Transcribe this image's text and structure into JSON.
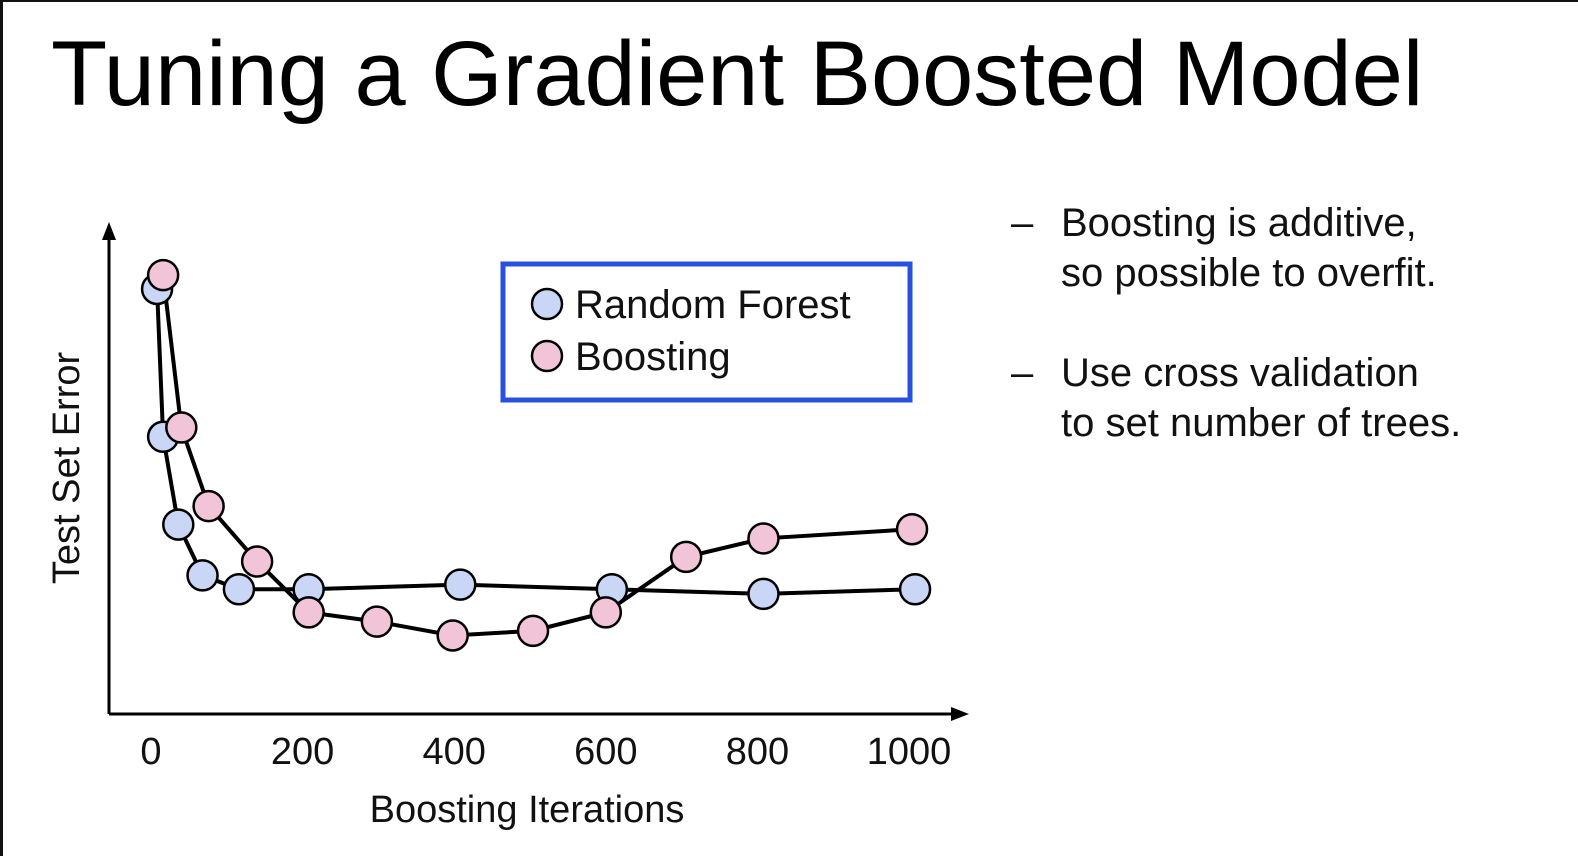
{
  "slide": {
    "title": "Tuning a Gradient Boosted Model"
  },
  "bullets": [
    {
      "dash": "–",
      "text": "Boosting is additive,\nso possible to overfit."
    },
    {
      "dash": "–",
      "text": "Use cross validation\nto set number of trees."
    }
  ],
  "chart_data": {
    "type": "line",
    "xlabel": "Boosting Iterations",
    "ylabel": "Test Set Error",
    "x_ticks": [
      0,
      200,
      400,
      600,
      800,
      1000
    ],
    "xlim": [
      0,
      1000
    ],
    "ylim": [
      0,
      100
    ],
    "grid": false,
    "legend_position": "top-center",
    "series": [
      {
        "name": "Random Forest",
        "color": "#c9d6f5",
        "x": [
          8,
          16,
          36,
          68,
          116,
          208,
          408,
          608,
          808,
          1008
        ],
        "y": [
          92,
          60,
          41,
          30,
          27,
          27,
          28,
          27,
          26,
          27
        ]
      },
      {
        "name": "Boosting",
        "color": "#f2c4d8",
        "x": [
          16,
          40,
          76,
          140,
          208,
          298,
          398,
          504,
          600,
          706,
          808,
          1004
        ],
        "y": [
          95,
          62,
          45,
          33,
          22,
          20,
          17,
          18,
          22,
          34,
          38,
          40
        ]
      }
    ],
    "legend_border_color": "#2850e0"
  }
}
